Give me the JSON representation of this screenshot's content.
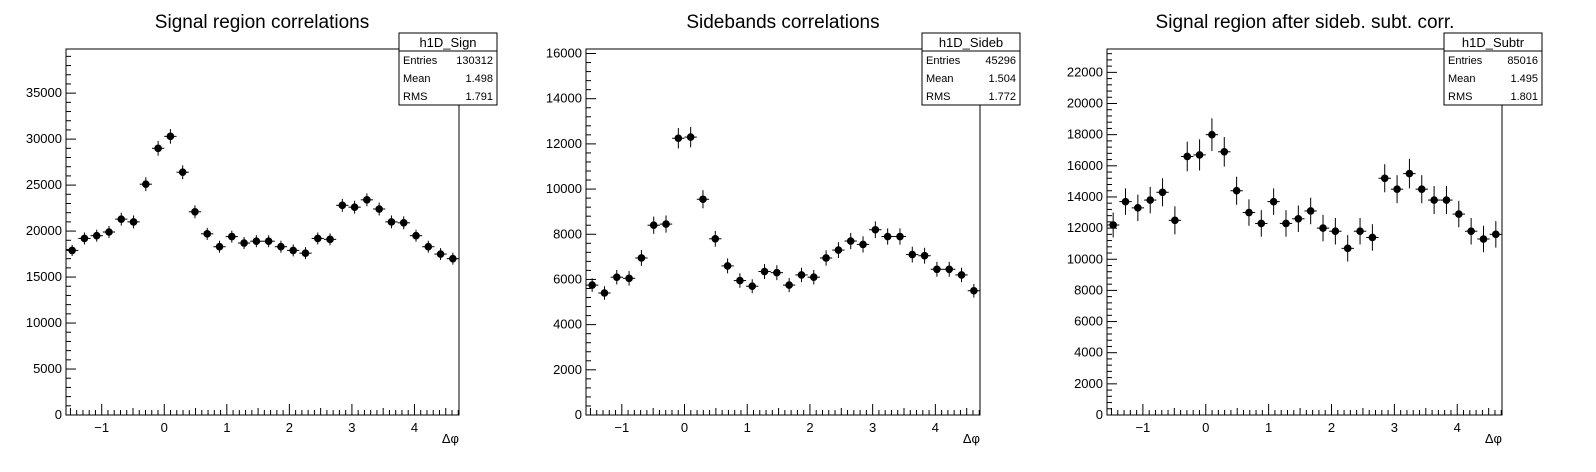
{
  "chart_data": [
    {
      "type": "scatter",
      "title": "Signal region correlations",
      "xlabel": "Δφ",
      "ylabel": "",
      "xlim": [
        -1.571,
        4.712
      ],
      "ylim": [
        0,
        39800
      ],
      "yticks": [
        0,
        5000,
        10000,
        15000,
        20000,
        25000,
        30000,
        35000
      ],
      "xticks": [
        -1,
        0,
        1,
        2,
        3,
        4
      ],
      "stats": {
        "name": "h1D_Sign",
        "rows": [
          [
            "Entries",
            "130312"
          ],
          [
            "Mean",
            "1.498"
          ],
          [
            "RMS",
            "1.791"
          ]
        ]
      },
      "values": [
        17900,
        19200,
        19500,
        19900,
        21300,
        21000,
        25100,
        29000,
        30300,
        26400,
        22100,
        19700,
        18300,
        19400,
        18700,
        18900,
        18900,
        18300,
        17900,
        17600,
        19200,
        19100,
        22800,
        22600,
        23400,
        22400,
        21000,
        20900,
        19500,
        18300,
        17500,
        17000
      ],
      "errors": [
        600,
        650,
        650,
        650,
        700,
        700,
        750,
        800,
        800,
        750,
        700,
        650,
        650,
        650,
        650,
        650,
        650,
        650,
        650,
        650,
        650,
        650,
        700,
        700,
        700,
        700,
        700,
        700,
        650,
        650,
        650,
        650
      ]
    },
    {
      "type": "scatter",
      "title": "Sidebands correlations",
      "xlabel": "Δφ",
      "ylabel": "",
      "xlim": [
        -1.571,
        4.712
      ],
      "ylim": [
        0,
        16200
      ],
      "yticks": [
        0,
        2000,
        4000,
        6000,
        8000,
        10000,
        12000,
        14000,
        16000
      ],
      "xticks": [
        -1,
        0,
        1,
        2,
        3,
        4
      ],
      "stats": {
        "name": "h1D_Sideb",
        "rows": [
          [
            "Entries",
            "45296"
          ],
          [
            "Mean",
            "1.504"
          ],
          [
            "RMS",
            "1.772"
          ]
        ]
      },
      "values": [
        5750,
        5400,
        6100,
        6050,
        6950,
        8400,
        8450,
        12250,
        12300,
        9550,
        7800,
        6600,
        5950,
        5700,
        6350,
        6300,
        5750,
        6200,
        6100,
        6950,
        7300,
        7700,
        7550,
        8200,
        7900,
        7900,
        7100,
        7050,
        6450,
        6450,
        6200,
        5500
      ],
      "errors": [
        300,
        300,
        320,
        320,
        350,
        380,
        380,
        450,
        450,
        400,
        350,
        330,
        320,
        310,
        330,
        330,
        310,
        320,
        320,
        340,
        350,
        360,
        360,
        370,
        360,
        360,
        350,
        350,
        330,
        330,
        320,
        300
      ]
    },
    {
      "type": "scatter",
      "title": "Signal region after sideb. subt. corr.",
      "xlabel": "Δφ",
      "ylabel": "",
      "xlim": [
        -1.571,
        4.712
      ],
      "ylim": [
        0,
        23500
      ],
      "yticks": [
        0,
        2000,
        4000,
        6000,
        8000,
        10000,
        12000,
        14000,
        16000,
        18000,
        20000,
        22000
      ],
      "xticks": [
        -1,
        0,
        1,
        2,
        3,
        4
      ],
      "stats": {
        "name": "h1D_Subtr",
        "rows": [
          [
            "Entries",
            "85016"
          ],
          [
            "Mean",
            "1.495"
          ],
          [
            "RMS",
            "1.801"
          ]
        ]
      },
      "values": [
        12200,
        13700,
        13300,
        13800,
        14300,
        12500,
        16600,
        16700,
        18000,
        16900,
        14400,
        13000,
        12300,
        13700,
        12300,
        12600,
        13100,
        12000,
        11800,
        10700,
        11800,
        11400,
        15200,
        14500,
        15500,
        14500,
        13800,
        13800,
        12900,
        11800,
        11300,
        11600
      ],
      "errors": [
        800,
        850,
        850,
        850,
        900,
        900,
        950,
        1000,
        1050,
        950,
        900,
        850,
        850,
        850,
        850,
        850,
        850,
        850,
        850,
        850,
        850,
        850,
        900,
        900,
        950,
        900,
        900,
        900,
        850,
        850,
        850,
        850
      ]
    }
  ]
}
